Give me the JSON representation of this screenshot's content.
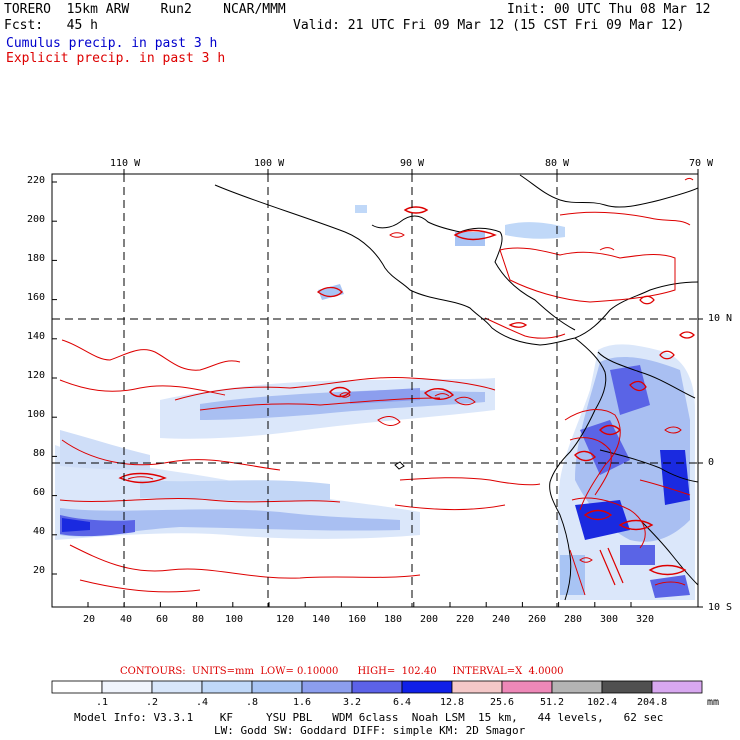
{
  "header": {
    "model": "TORERO  15km ARW    Run2    NCAR/MMM",
    "init": "Init: 00 UTC Thu 08 Mar 12",
    "fcst": "Fcst:   45 h",
    "valid": "Valid: 21 UTC Fri 09 Mar 12 (15 CST Fri 09 Mar 12)",
    "legend_cumulus": "Cumulus precip. in past 3 h",
    "legend_explicit": "Explicit precip. in past 3 h"
  },
  "colors": {
    "cumulus_legend": "#0000cc",
    "explicit_legend": "#dd0000",
    "contour": "#dd0000",
    "coast": "#000000"
  },
  "axes": {
    "top_lon": [
      "110 W",
      "100 W",
      "90 W",
      "80 W",
      "70 W"
    ],
    "right_lat": [
      "10 N",
      "0",
      "10 S"
    ],
    "left_y": [
      "220",
      "200",
      "180",
      "160",
      "140",
      "120",
      "100",
      "80",
      "60",
      "40",
      "20"
    ],
    "bottom_x": [
      "20",
      "40",
      "60",
      "80",
      "100",
      "120",
      "140",
      "160",
      "180",
      "200",
      "220",
      "240",
      "260",
      "280",
      "300",
      "320"
    ]
  },
  "contour_info": {
    "label": "CONTOURS:  UNITS=mm  LOW= 0.10000      HIGH=  102.40     INTERVAL=X  4.0000"
  },
  "colorbar": {
    "labels": [
      ".1",
      ".2",
      ".4",
      ".8",
      "1.6",
      "3.2",
      "6.4",
      "12.8",
      "25.6",
      "51.2",
      "102.4",
      "204.8"
    ],
    "unit": "mm",
    "colors": [
      "#ffffff",
      "#f0f4fc",
      "#d8e6fa",
      "#c0d8f8",
      "#a8c4f4",
      "#8c9eee",
      "#5c62e8",
      "#1020e8",
      "#f4c8c8",
      "#ee88b8",
      "#b4b4b4",
      "#505050",
      "#d8a8f0"
    ]
  },
  "footer": {
    "line1": "Model Info: V3.3.1    KF     YSU PBL   WDM 6class  Noah LSM  15 km,   44 levels,   62 sec",
    "line2": "LW: Godd SW: Goddard DIFF: simple KM: 2D Smagor"
  }
}
